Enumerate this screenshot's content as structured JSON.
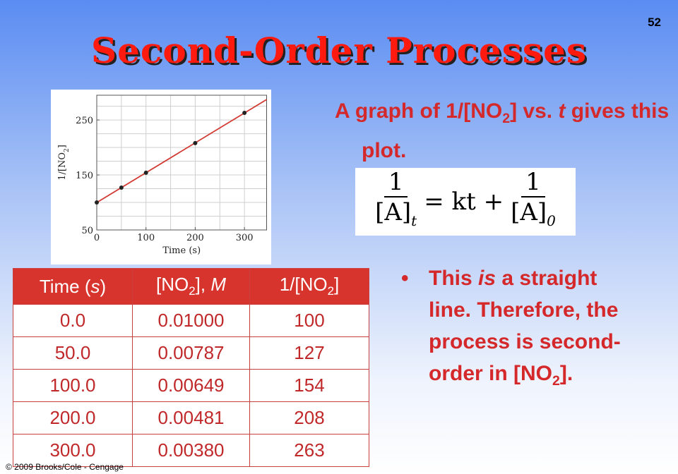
{
  "slide_number": "52",
  "title": "Second-Order Processes",
  "intro": [
    "A graph of 1/[NO",
    "2",
    "] vs. ",
    "t",
    " gives this plot."
  ],
  "equation": {
    "lhs_num": "1",
    "lhs_den": "[A]",
    "lhs_sub": "t",
    "middle": "= kt +",
    "rhs_num": "1",
    "rhs_den": "[A]",
    "rhs_sub": "0"
  },
  "bullet": [
    "This ",
    "is",
    " a straight line. Therefore, the process is second-order in [NO",
    "2",
    "]."
  ],
  "plot": {
    "type": "scatter",
    "xlabel": "Time (s)",
    "ylabel": [
      "1/[NO",
      "2",
      "]"
    ],
    "x": [
      0,
      50,
      100,
      200,
      300
    ],
    "y": [
      100,
      127,
      154,
      208,
      263
    ],
    "xlim": [
      0,
      345
    ],
    "ylim": [
      50,
      295
    ],
    "xticks": [
      0,
      100,
      200,
      300
    ],
    "yticks": [
      50,
      150,
      250
    ],
    "xgrid": [
      0,
      50,
      100,
      150,
      200,
      250,
      300
    ],
    "ygrid": [
      50,
      75,
      100,
      125,
      150,
      175,
      200,
      225,
      250,
      275
    ],
    "point_color": "#222222",
    "line_color": "#d23a32",
    "fit_line": true
  },
  "table": {
    "header": [
      [
        "Time (",
        "s",
        ")"
      ],
      [
        "[NO",
        "2",
        "], ",
        "M"
      ],
      [
        "1/[NO",
        "2",
        "]"
      ]
    ],
    "rows": [
      [
        "0.0",
        "0.01000",
        "100"
      ],
      [
        "50.0",
        "0.00787",
        "127"
      ],
      [
        "100.0",
        "0.00649",
        "154"
      ],
      [
        "200.0",
        "0.00481",
        "208"
      ],
      [
        "300.0",
        "0.00380",
        "263"
      ]
    ]
  },
  "footer": "© 2009 Brooks/Cole - Cengage"
}
